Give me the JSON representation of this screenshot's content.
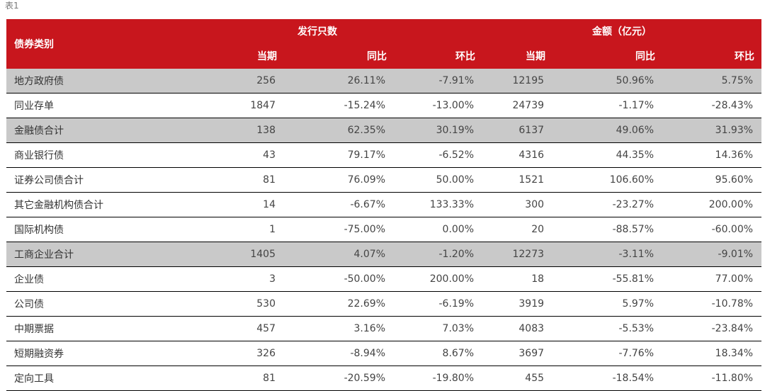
{
  "caption": "表1",
  "header": {
    "category": "债券类别",
    "group_count": "发行只数",
    "group_amount": "金额（亿元）",
    "sub": [
      "当期",
      "同比",
      "环比",
      "当期",
      "同比",
      "环比"
    ]
  },
  "rows": [
    {
      "name": "地方政府债",
      "shaded": true,
      "values": [
        "256",
        "26.11%",
        "-7.91%",
        "12195",
        "50.96%",
        "5.75%"
      ]
    },
    {
      "name": "同业存单",
      "shaded": false,
      "values": [
        "1847",
        "-15.24%",
        "-13.00%",
        "24739",
        "-1.17%",
        "-28.43%"
      ]
    },
    {
      "name": "金融债合计",
      "shaded": true,
      "values": [
        "138",
        "62.35%",
        "30.19%",
        "6137",
        "49.06%",
        "31.93%"
      ]
    },
    {
      "name": "商业银行债",
      "shaded": false,
      "values": [
        "43",
        "79.17%",
        "-6.52%",
        "4316",
        "44.35%",
        "14.36%"
      ]
    },
    {
      "name": "证券公司债合计",
      "shaded": false,
      "values": [
        "81",
        "76.09%",
        "50.00%",
        "1521",
        "106.60%",
        "95.60%"
      ]
    },
    {
      "name": "其它金融机构债合计",
      "shaded": false,
      "values": [
        "14",
        "-6.67%",
        "133.33%",
        "300",
        "-23.27%",
        "200.00%"
      ]
    },
    {
      "name": "国际机构债",
      "shaded": false,
      "values": [
        "1",
        "-75.00%",
        "0.00%",
        "20",
        "-88.57%",
        "-60.00%"
      ]
    },
    {
      "name": "工商企业合计",
      "shaded": true,
      "values": [
        "1405",
        "4.07%",
        "-1.20%",
        "12273",
        "-3.11%",
        "-9.01%"
      ]
    },
    {
      "name": "企业债",
      "shaded": false,
      "values": [
        "3",
        "-50.00%",
        "200.00%",
        "18",
        "-55.81%",
        "77.00%"
      ]
    },
    {
      "name": "公司债",
      "shaded": false,
      "values": [
        "530",
        "22.69%",
        "-6.19%",
        "3919",
        "5.97%",
        "-10.78%"
      ]
    },
    {
      "name": "中期票据",
      "shaded": false,
      "values": [
        "457",
        "3.16%",
        "7.03%",
        "4083",
        "-5.53%",
        "-23.84%"
      ]
    },
    {
      "name": "短期融资券",
      "shaded": false,
      "values": [
        "326",
        "-8.94%",
        "8.67%",
        "3697",
        "-7.76%",
        "18.34%"
      ]
    },
    {
      "name": "定向工具",
      "shaded": false,
      "values": [
        "81",
        "-20.59%",
        "-19.80%",
        "455",
        "-18.54%",
        "-11.80%"
      ]
    }
  ],
  "colors": {
    "header_bg": "#c8161d",
    "header_text": "#ffffff",
    "shade": "#c9c9c9",
    "rule": "#000000"
  }
}
